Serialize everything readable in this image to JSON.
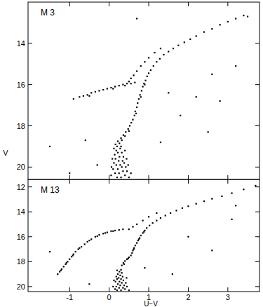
{
  "chart_data": [
    {
      "type": "scatter",
      "title": "M 3",
      "y_label": "V",
      "color": "#000000",
      "marker": "square",
      "tick_labels": "y",
      "xlim": [
        -2.05,
        3.8
      ],
      "ylim": [
        20.6,
        12
      ],
      "xticks": [
        -1,
        0,
        1,
        2,
        3
      ],
      "yticks": [
        14,
        16,
        18,
        20
      ],
      "x": [
        0.2,
        0.3,
        0.4,
        0.15,
        0.25,
        0.35,
        0.45,
        0.1,
        0.22,
        0.32,
        0.42,
        0.18,
        0.28,
        0.38,
        0.12,
        0.24,
        0.34,
        0.44,
        0.16,
        0.26,
        0.36,
        0.14,
        0.22,
        0.32,
        0.18,
        0.28,
        0.12,
        0.2,
        0.3,
        0.16,
        0.26,
        0.22,
        0.32,
        0.5,
        0.05,
        0.55,
        0.48,
        0.08,
        0.4,
        0.06,
        0.3,
        0.36,
        0.42,
        0.48,
        0.52,
        0.56,
        0.6,
        0.4,
        0.5,
        0.64,
        0.66,
        0.7,
        0.72,
        0.75,
        0.78,
        0.82,
        0.85,
        0.88,
        0.92,
        0.96,
        1.0,
        1.05,
        1.12,
        1.2,
        1.28,
        1.38,
        1.5,
        1.62,
        1.75,
        1.9,
        2.05,
        2.2,
        2.4,
        2.6,
        2.8,
        3.0,
        3.2,
        3.4,
        0.68,
        0.8,
        0.9,
        0.55,
        0.62,
        0.7,
        0.8,
        0.9,
        1.0,
        1.15,
        1.3,
        -0.75,
        -0.65,
        -0.55,
        -0.45,
        -0.35,
        -0.25,
        -0.15,
        -0.05,
        0.05,
        0.15,
        0.25,
        0.35,
        0.45,
        0.55,
        0.65,
        -0.5,
        0.1,
        0.4,
        0.5,
        -0.9,
        -1.5,
        -1.0,
        3.2,
        2.6,
        2.5,
        1.5,
        2.2,
        1.3,
        -0.3,
        0.7,
        2.8,
        3.5,
        1.8,
        -0.6
      ],
      "values": [
        20.5,
        20.5,
        20.4,
        20.3,
        20.3,
        20.2,
        20.2,
        20.1,
        20.1,
        20.0,
        20.0,
        19.9,
        19.9,
        19.8,
        19.8,
        19.7,
        19.7,
        19.6,
        19.6,
        19.5,
        19.5,
        19.4,
        19.3,
        19.3,
        19.2,
        19.1,
        19.1,
        19.0,
        19.0,
        18.9,
        18.85,
        18.75,
        18.7,
        20.5,
        20.4,
        20.3,
        19.9,
        19.6,
        19.2,
        20.0,
        18.6,
        18.45,
        18.3,
        18.15,
        18.0,
        17.85,
        17.7,
        18.5,
        18.25,
        17.5,
        17.3,
        17.1,
        16.9,
        16.7,
        16.5,
        16.3,
        16.1,
        15.95,
        15.8,
        15.6,
        15.45,
        15.3,
        15.1,
        14.9,
        14.75,
        14.55,
        14.4,
        14.25,
        14.1,
        13.95,
        13.8,
        13.65,
        13.45,
        13.3,
        13.1,
        12.95,
        12.8,
        12.65,
        17.4,
        16.6,
        16.0,
        15.7,
        15.55,
        15.35,
        15.1,
        14.9,
        14.7,
        14.45,
        14.25,
        16.6,
        16.55,
        16.5,
        16.4,
        16.35,
        16.3,
        16.25,
        16.2,
        16.15,
        16.1,
        16.05,
        16.0,
        15.95,
        15.95,
        15.9,
        16.55,
        16.2,
        16.05,
        15.85,
        16.7,
        19.0,
        20.3,
        15.1,
        15.5,
        18.3,
        16.4,
        16.6,
        18.8,
        19.9,
        12.8,
        16.8,
        12.7,
        17.5,
        18.7
      ]
    },
    {
      "type": "scatter",
      "title": "M 13",
      "x_label": "U−V",
      "color": "#000000",
      "marker": "square",
      "xlim": [
        -2.05,
        3.8
      ],
      "ylim": [
        20.4,
        11.4
      ],
      "xticks": [
        -1,
        0,
        1,
        2,
        3
      ],
      "yticks": [
        12,
        14,
        16,
        18,
        20
      ],
      "x": [
        0.2,
        0.3,
        0.4,
        0.15,
        0.25,
        0.35,
        0.45,
        0.18,
        0.28,
        0.38,
        0.22,
        0.32,
        0.42,
        0.16,
        0.26,
        0.36,
        0.2,
        0.3,
        0.24,
        0.34,
        0.18,
        0.28,
        0.22,
        0.32,
        0.26,
        0.2,
        0.3,
        0.1,
        0.5,
        0.12,
        0.44,
        0.32,
        0.36,
        0.4,
        0.45,
        0.5,
        0.55,
        0.38,
        0.48,
        0.58,
        0.6,
        0.63,
        0.66,
        0.7,
        0.73,
        0.77,
        0.8,
        0.85,
        0.9,
        0.95,
        1.02,
        1.1,
        1.2,
        1.3,
        1.42,
        1.55,
        1.7,
        1.85,
        2.0,
        2.2,
        2.4,
        2.6,
        2.85,
        3.1,
        3.4,
        3.7,
        0.62,
        0.75,
        0.88,
        0.5,
        0.6,
        0.7,
        0.85,
        1.0,
        1.2,
        -1.3,
        -1.25,
        -1.2,
        -1.15,
        -1.1,
        -1.05,
        -1.0,
        -0.95,
        -0.9,
        -0.85,
        -0.78,
        -0.7,
        -0.62,
        -0.55,
        -0.45,
        -0.35,
        -0.25,
        -0.15,
        -0.05,
        0.05,
        0.15,
        0.25,
        0.35,
        -1.22,
        -1.08,
        -0.92,
        -0.75,
        -0.5,
        -0.3,
        -0.1,
        0.1,
        -1.5,
        2.6,
        3.1,
        1.6,
        -0.5,
        2.0,
        0.9,
        3.2
      ],
      "values": [
        20.3,
        20.3,
        20.2,
        20.2,
        20.1,
        20.1,
        20.0,
        20.0,
        19.9,
        19.9,
        19.8,
        19.7,
        19.7,
        19.6,
        19.6,
        19.5,
        19.4,
        19.4,
        19.3,
        19.2,
        19.2,
        19.1,
        19.0,
        18.9,
        18.8,
        18.7,
        18.65,
        20.0,
        20.3,
        19.5,
        19.3,
        18.3,
        18.1,
        17.95,
        17.8,
        17.65,
        17.5,
        18.2,
        17.75,
        17.3,
        17.1,
        16.9,
        16.7,
        16.5,
        16.3,
        16.1,
        15.9,
        15.7,
        15.5,
        15.3,
        15.1,
        14.9,
        14.7,
        14.5,
        14.3,
        14.1,
        13.9,
        13.7,
        13.55,
        13.35,
        13.15,
        12.95,
        12.75,
        12.5,
        12.2,
        11.9,
        17.0,
        16.2,
        15.6,
        15.4,
        15.2,
        15.0,
        14.7,
        14.4,
        14.1,
        19.0,
        18.8,
        18.6,
        18.4,
        18.2,
        18.0,
        17.8,
        17.6,
        17.4,
        17.2,
        17.0,
        16.8,
        16.6,
        16.4,
        16.2,
        16.0,
        15.85,
        15.75,
        15.65,
        15.55,
        15.5,
        15.45,
        15.4,
        18.7,
        18.1,
        17.5,
        16.9,
        16.3,
        15.95,
        15.7,
        15.55,
        17.2,
        17.1,
        14.6,
        19.0,
        19.8,
        16.0,
        18.5,
        13.5
      ]
    }
  ]
}
